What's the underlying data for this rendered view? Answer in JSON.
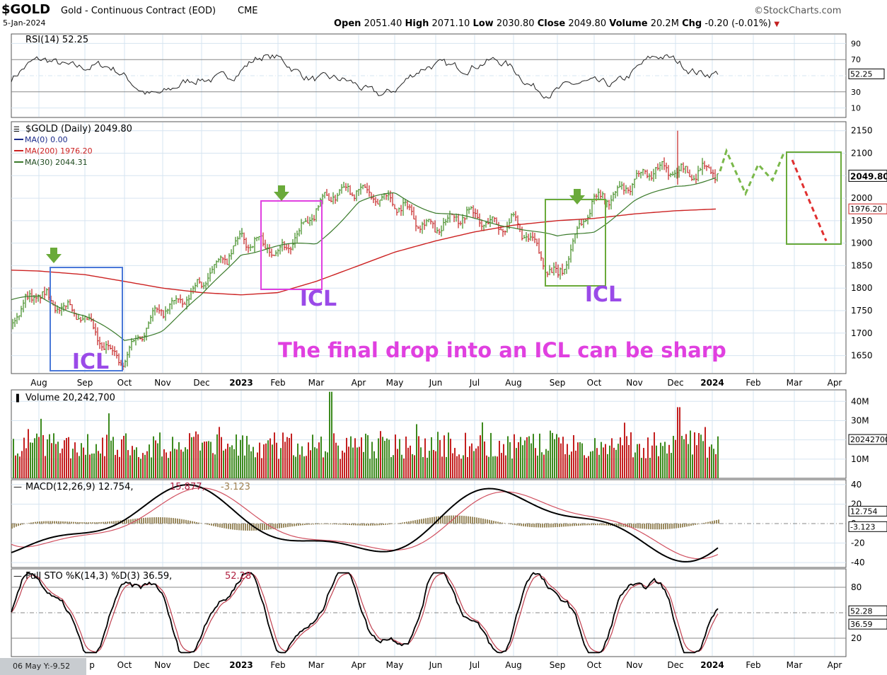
{
  "header": {
    "symbol": "$GOLD",
    "name": "Gold - Continuous Contract (EOD)",
    "exchange": "CME",
    "date": "5-Jan-2024",
    "brand": "©StockCharts.com",
    "open_label": "Open",
    "open": "2051.40",
    "high_label": "High",
    "high": "2071.10",
    "low_label": "Low",
    "low": "2030.80",
    "close_label": "Close",
    "close": "2049.80",
    "volume_label": "Volume",
    "volume": "20.2M",
    "chg_label": "Chg",
    "chg": "-0.20 (-0.01%)",
    "chg_arrow": "▼"
  },
  "colors": {
    "up": "#3d8a1e",
    "down": "#c42020",
    "ma200": "#cc2222",
    "ma30": "#3a7a2a",
    "box_blue": "#4a78d8",
    "box_magenta": "#e040e0",
    "box_green": "#6aaa3a",
    "icl_purple": "#9a4ae8",
    "annot_magenta": "#e040e0",
    "arrow_green": "#6aaa3a",
    "grid": "#d6e4f0",
    "axis_tag": "#000"
  },
  "rsi": {
    "label": "RSI(14) 52.25",
    "ticks": [
      "90",
      "70",
      "50",
      "30",
      "10"
    ],
    "last_tag": "52.25"
  },
  "price": {
    "label": "$GOLD (Daily) 2049.80",
    "ma0": "MA(0) 0.00",
    "ma200": "MA(200) 1976.20",
    "ma30": "MA(30) 2044.31",
    "ticks": [
      "2150",
      "2100",
      "2050",
      "2000",
      "1950",
      "1900",
      "1850",
      "1800",
      "1750",
      "1700",
      "1650"
    ],
    "last_tag": "2049.80",
    "ma200_tag": "1976.20",
    "icl_labels": [
      "ICL",
      "ICL",
      "ICL"
    ],
    "annotation": "The final drop into an ICL can be sharp"
  },
  "volume": {
    "label": "Volume 20,242,700",
    "ticks": [
      "40M",
      "30M",
      "20M",
      "10M"
    ],
    "last_tag": "20242700"
  },
  "macd": {
    "label_a": "MACD(12,26,9) 12.754,",
    "label_b": "15.877,",
    "label_c": "-3.123",
    "ticks": [
      "40",
      "20",
      "0",
      "-20",
      "-40"
    ],
    "tag_macd": "12.754",
    "tag_hist": "-3.123"
  },
  "sto": {
    "label_a": "Full STO %K(14,3) %D(3) 36.59,",
    "label_b": "52.28",
    "ticks": [
      "80",
      "20"
    ],
    "tag_d": "52.28",
    "tag_k": "36.59"
  },
  "x_axis": {
    "months": [
      "Aug",
      "Sep",
      "Oct",
      "Nov",
      "Dec",
      "2023",
      "Feb",
      "Mar",
      "Apr",
      "May",
      "Jun",
      "Jul",
      "Aug",
      "Sep",
      "Oct",
      "Nov",
      "Dec",
      "2024",
      "Feb",
      "Mar",
      "Apr"
    ],
    "bottom_months": [
      "p",
      "Oct",
      "Nov",
      "Dec",
      "2023",
      "Feb",
      "Mar",
      "Apr",
      "May",
      "Jun",
      "Jul",
      "Aug",
      "Sep",
      "Oct",
      "Nov",
      "Dec",
      "2024",
      "Feb",
      "Mar",
      "Apr"
    ]
  },
  "footer": "06 May Y:-9.52",
  "chart_data": {
    "type": "line",
    "title": "$GOLD (Daily) 2049.80",
    "ylim": [
      1610,
      2170
    ],
    "x": [
      "Jul-2022",
      "Aug-2022",
      "Sep-2022",
      "Oct-2022",
      "Nov-2022",
      "Dec-2022",
      "Jan-2023",
      "Feb-2023",
      "Mar-2023",
      "Apr-2023",
      "May-2023",
      "Jun-2023",
      "Jul-2023",
      "Aug-2023",
      "Sep-2023",
      "Oct-2023",
      "Nov-2023",
      "Dec-2023",
      "Jan-2024"
    ],
    "series": [
      {
        "name": "$GOLD",
        "values": [
          1720,
          1800,
          1720,
          1640,
          1760,
          1800,
          1920,
          1870,
          1980,
          2030,
          1980,
          1940,
          1960,
          1940,
          1830,
          1990,
          2040,
          2070,
          2050
        ]
      },
      {
        "name": "MA(200)",
        "values": [
          1840,
          1838,
          1830,
          1815,
          1800,
          1790,
          1785,
          1790,
          1815,
          1850,
          1880,
          1905,
          1925,
          1940,
          1950,
          1955,
          1965,
          1972,
          1976
        ]
      },
      {
        "name": "MA(30)",
        "values": [
          1770,
          1780,
          1740,
          1680,
          1710,
          1780,
          1880,
          1890,
          1900,
          1990,
          2010,
          1970,
          1950,
          1940,
          1910,
          1930,
          1990,
          2030,
          2044
        ]
      }
    ]
  }
}
